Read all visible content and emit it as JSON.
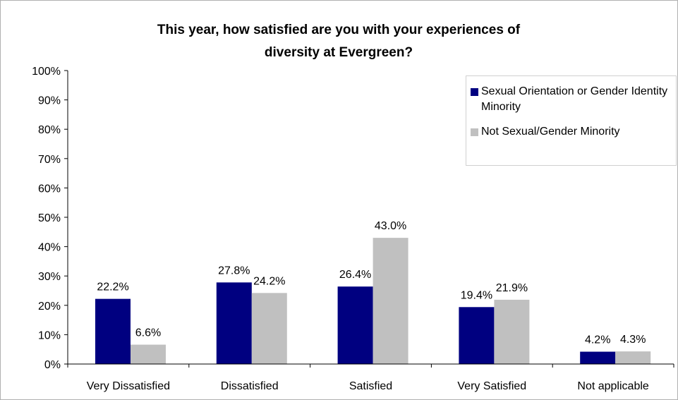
{
  "chart_data": {
    "type": "bar",
    "title_lines": [
      "This year, how satisfied are you with your experiences of",
      "diversity at Evergreen?"
    ],
    "categories": [
      "Very Dissatisfied",
      "Dissatisfied",
      "Satisfied",
      "Very Satisfied",
      "Not applicable"
    ],
    "series": [
      {
        "name": "Sexual Orientation or Gender Identity Minority",
        "color": "#000080",
        "values": [
          22.2,
          27.8,
          26.4,
          19.4,
          4.2
        ],
        "labels": [
          "22.2%",
          "27.8%",
          "26.4%",
          "19.4%",
          "4.2%"
        ]
      },
      {
        "name": "Not Sexual/Gender Minority",
        "color": "#c0c0c0",
        "values": [
          6.6,
          24.2,
          43.0,
          21.9,
          4.3
        ],
        "labels": [
          "6.6%",
          "24.2%",
          "43.0%",
          "21.9%",
          "4.3%"
        ]
      }
    ],
    "ylim": [
      0,
      100
    ],
    "yticks": [
      0,
      10,
      20,
      30,
      40,
      50,
      60,
      70,
      80,
      90,
      100
    ],
    "ytick_labels": [
      "0%",
      "10%",
      "20%",
      "30%",
      "40%",
      "50%",
      "60%",
      "70%",
      "80%",
      "90%",
      "100%"
    ],
    "xlabel": "",
    "ylabel": "",
    "grid": false,
    "legend_position": "top-right"
  }
}
